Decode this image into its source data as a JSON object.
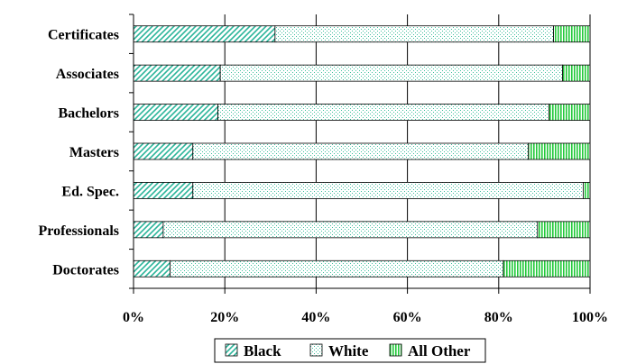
{
  "chart_data": {
    "type": "bar",
    "orientation": "horizontal",
    "stacked": "percent",
    "categories": [
      "Certificates",
      "Associates",
      "Bachelors",
      "Masters",
      "Ed. Spec.",
      "Professionals",
      "Doctorates"
    ],
    "series": [
      {
        "name": "Black",
        "values": [
          31,
          19,
          18.5,
          13,
          13,
          6.5,
          8
        ],
        "color": "#2bb59a",
        "pattern": "diagonal-hatch"
      },
      {
        "name": "White",
        "values": [
          61,
          75,
          72.5,
          73.5,
          85.5,
          82,
          73
        ],
        "color": "#e6f7f3",
        "pattern": "dots"
      },
      {
        "name": "All Other",
        "values": [
          8,
          6,
          9,
          13.5,
          1.5,
          11.5,
          19
        ],
        "color": "#22c93a",
        "pattern": "vertical-stripes"
      }
    ],
    "x_ticks": [
      "0%",
      "20%",
      "40%",
      "60%",
      "80%",
      "100%"
    ],
    "xlim": [
      0,
      100
    ],
    "grid": "vertical",
    "legend": "bottom-center"
  }
}
